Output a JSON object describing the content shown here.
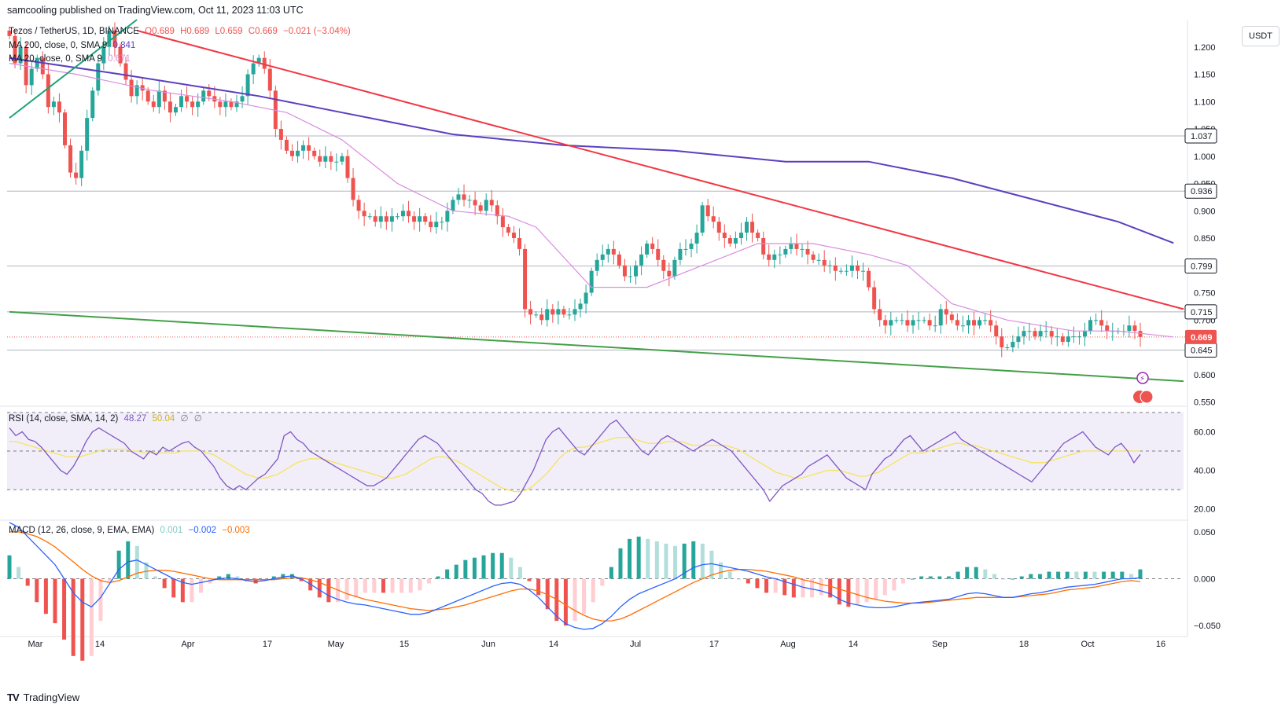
{
  "header": {
    "published": "samcooling published on TradingView.com, Oct 11, 2023 11:03 UTC"
  },
  "price_legend": {
    "symbol": "Tezos / TetherUS, 1D, BINANCE",
    "o": "O0.689",
    "h": "H0.689",
    "l": "L0.659",
    "c": "C0.669",
    "chg": "−0.021 (−3.04%)",
    "ma200": "MA 200, close, 0, SMA 9",
    "ma200_val": "0.841",
    "ma20": "MA 20, close, 0, SMA 9",
    "ma20_val": "0.671"
  },
  "rsi_legend": {
    "label": "RSI (14, close, SMA, 14, 2)",
    "v1": "48.27",
    "v2": "50.04",
    "v3": "∅",
    "v4": "∅"
  },
  "macd_legend": {
    "label": "MACD (12, 26, close, 9, EMA, EMA)",
    "v1": "0.001",
    "v2": "−0.002",
    "v3": "−0.003"
  },
  "currency_button": "USDT",
  "footer": {
    "logo": "TV",
    "brand": "TradingView"
  },
  "colors": {
    "up": "#26a69a",
    "down": "#ef5350",
    "ma200": "#5b3fbf",
    "ma20": "#d98ce0",
    "resistance": "#f23645",
    "support": "#43a047",
    "rsi": "#7e57c2",
    "rsi_sma": "#f7e35c",
    "macd": "#2962ff",
    "signal": "#ff6d00"
  },
  "chart_data": {
    "type": "candlestick",
    "price_axis": {
      "labels": [
        "1.200",
        "1.150",
        "1.100",
        "1.050",
        "1.000",
        "0.950",
        "0.900",
        "0.850",
        "0.750",
        "0.700",
        "0.600",
        "0.550"
      ],
      "min": 0.545,
      "max": 1.25
    },
    "x_axis_labels": [
      "Mar",
      "14",
      "Apr",
      "17",
      "May",
      "15",
      "Jun",
      "14",
      "Jul",
      "17",
      "Aug",
      "14",
      "Sep",
      "18",
      "Oct",
      "16"
    ],
    "level_labels": [
      "1.037",
      "0.936",
      "0.799",
      "0.715",
      "0.645"
    ],
    "levels": [
      1.037,
      0.936,
      0.799,
      0.715,
      0.645
    ],
    "last_price": {
      "label": "0.669",
      "value": 0.669
    },
    "closes": [
      1.22,
      1.17,
      1.2,
      1.13,
      1.16,
      1.18,
      1.15,
      1.09,
      1.1,
      1.08,
      1.02,
      0.97,
      0.96,
      1.01,
      1.07,
      1.12,
      1.17,
      1.2,
      1.23,
      1.2,
      1.17,
      1.14,
      1.11,
      1.13,
      1.12,
      1.1,
      1.09,
      1.12,
      1.1,
      1.08,
      1.09,
      1.11,
      1.1,
      1.09,
      1.1,
      1.12,
      1.11,
      1.1,
      1.09,
      1.1,
      1.09,
      1.1,
      1.11,
      1.15,
      1.17,
      1.18,
      1.16,
      1.12,
      1.05,
      1.03,
      1.01,
      1.0,
      1.01,
      1.02,
      1.01,
      1.0,
      0.99,
      1.0,
      0.99,
      0.99,
      1.0,
      0.96,
      0.92,
      0.9,
      0.89,
      0.89,
      0.88,
      0.89,
      0.88,
      0.89,
      0.89,
      0.9,
      0.89,
      0.88,
      0.89,
      0.88,
      0.87,
      0.88,
      0.88,
      0.9,
      0.92,
      0.93,
      0.92,
      0.92,
      0.91,
      0.9,
      0.92,
      0.91,
      0.89,
      0.87,
      0.86,
      0.85,
      0.83,
      0.72,
      0.71,
      0.71,
      0.7,
      0.72,
      0.71,
      0.72,
      0.71,
      0.71,
      0.72,
      0.73,
      0.75,
      0.79,
      0.81,
      0.82,
      0.83,
      0.82,
      0.8,
      0.78,
      0.78,
      0.8,
      0.82,
      0.84,
      0.83,
      0.81,
      0.79,
      0.78,
      0.81,
      0.83,
      0.83,
      0.84,
      0.86,
      0.91,
      0.89,
      0.88,
      0.86,
      0.85,
      0.84,
      0.85,
      0.86,
      0.88,
      0.86,
      0.85,
      0.82,
      0.81,
      0.82,
      0.82,
      0.83,
      0.84,
      0.83,
      0.83,
      0.82,
      0.81,
      0.81,
      0.8,
      0.8,
      0.79,
      0.79,
      0.79,
      0.8,
      0.79,
      0.79,
      0.76,
      0.72,
      0.7,
      0.69,
      0.7,
      0.7,
      0.7,
      0.69,
      0.7,
      0.7,
      0.7,
      0.69,
      0.69,
      0.72,
      0.71,
      0.7,
      0.69,
      0.69,
      0.7,
      0.69,
      0.7,
      0.7,
      0.69,
      0.67,
      0.65,
      0.65,
      0.66,
      0.67,
      0.68,
      0.68,
      0.67,
      0.68,
      0.68,
      0.67,
      0.67,
      0.66,
      0.67,
      0.67,
      0.67,
      0.68,
      0.7,
      0.7,
      0.69,
      0.68,
      0.68,
      0.68,
      0.68,
      0.69,
      0.68,
      0.669
    ],
    "ma20_points": [
      [
        0,
        1.17
      ],
      [
        12,
        1.15
      ],
      [
        26,
        1.12
      ],
      [
        40,
        1.1
      ],
      [
        50,
        1.08
      ],
      [
        60,
        1.03
      ],
      [
        70,
        0.95
      ],
      [
        80,
        0.9
      ],
      [
        90,
        0.89
      ],
      [
        95,
        0.87
      ],
      [
        105,
        0.76
      ],
      [
        115,
        0.76
      ],
      [
        125,
        0.8
      ],
      [
        135,
        0.84
      ],
      [
        145,
        0.84
      ],
      [
        155,
        0.82
      ],
      [
        162,
        0.8
      ],
      [
        170,
        0.73
      ],
      [
        180,
        0.7
      ],
      [
        192,
        0.68
      ],
      [
        200,
        0.68
      ],
      [
        210,
        0.669
      ]
    ],
    "ma200_points": [
      [
        0,
        1.18
      ],
      [
        20,
        1.15
      ],
      [
        45,
        1.11
      ],
      [
        60,
        1.08
      ],
      [
        80,
        1.04
      ],
      [
        100,
        1.02
      ],
      [
        120,
        1.01
      ],
      [
        140,
        0.99
      ],
      [
        155,
        0.99
      ],
      [
        170,
        0.96
      ],
      [
        185,
        0.92
      ],
      [
        200,
        0.88
      ],
      [
        210,
        0.841
      ]
    ],
    "trendlines": [
      {
        "name": "resistance",
        "from": [
          23,
          1.23
        ],
        "to": [
          216,
          0.72
        ]
      },
      {
        "name": "support",
        "from": [
          0,
          0.715
        ],
        "to": [
          216,
          0.588
        ]
      },
      {
        "name": "early-uptrend",
        "from": [
          0,
          1.07
        ],
        "to": [
          23,
          1.25
        ]
      }
    ],
    "rsi_axis": {
      "labels": [
        "60.00",
        "40.00",
        "20.00"
      ],
      "min": 15,
      "max": 72,
      "upper": 70,
      "lower": 30
    },
    "rsi_series": [
      62,
      58,
      60,
      56,
      55,
      52,
      48,
      44,
      40,
      38,
      42,
      48,
      55,
      60,
      62,
      60,
      58,
      56,
      54,
      50,
      48,
      46,
      50,
      48,
      52,
      50,
      52,
      54,
      55,
      52,
      50,
      46,
      42,
      36,
      32,
      30,
      32,
      30,
      33,
      36,
      38,
      42,
      46,
      58,
      60,
      56,
      54,
      50,
      48,
      46,
      44,
      42,
      40,
      38,
      36,
      34,
      32,
      32,
      34,
      36,
      40,
      44,
      48,
      52,
      56,
      58,
      56,
      54,
      50,
      46,
      42,
      38,
      34,
      30,
      28,
      24,
      22,
      22,
      23,
      24,
      28,
      34,
      40,
      48,
      56,
      60,
      62,
      58,
      54,
      50,
      48,
      52,
      56,
      60,
      64,
      66,
      62,
      58,
      54,
      50,
      48,
      52,
      56,
      58,
      56,
      54,
      52,
      50,
      52,
      54,
      56,
      54,
      52,
      50,
      46,
      42,
      38,
      34,
      30,
      24,
      28,
      32,
      34,
      36,
      38,
      42,
      44,
      46,
      48,
      44,
      40,
      36,
      34,
      32,
      30,
      38,
      42,
      46,
      48,
      52,
      56,
      58,
      54,
      50,
      52,
      54,
      56,
      58,
      60,
      56,
      54,
      52,
      50,
      48,
      46,
      44,
      42,
      40,
      38,
      36,
      34,
      38,
      42,
      46,
      50,
      54,
      56,
      58,
      60,
      56,
      52,
      50,
      48,
      52,
      54,
      50,
      44,
      48.27
    ],
    "rsi_sma_series": [
      55,
      55,
      54,
      53,
      52,
      51,
      50,
      49,
      48,
      47,
      47,
      47,
      48,
      49,
      50,
      51,
      51,
      51,
      51,
      50,
      50,
      49,
      49,
      49,
      49,
      49,
      49,
      50,
      50,
      50,
      50,
      49,
      48,
      46,
      44,
      42,
      40,
      38,
      37,
      36,
      36,
      37,
      38,
      40,
      42,
      44,
      45,
      46,
      46,
      46,
      45,
      44,
      43,
      42,
      41,
      40,
      39,
      38,
      37,
      36,
      36,
      37,
      38,
      40,
      42,
      44,
      46,
      47,
      47,
      46,
      45,
      43,
      41,
      39,
      37,
      35,
      33,
      31,
      30,
      29,
      29,
      30,
      32,
      35,
      38,
      42,
      46,
      49,
      51,
      52,
      52,
      53,
      54,
      55,
      56,
      57,
      57,
      57,
      56,
      55,
      54,
      54,
      54,
      55,
      55,
      55,
      54,
      53,
      53,
      53,
      53,
      53,
      53,
      52,
      51,
      49,
      47,
      45,
      43,
      41,
      39,
      38,
      37,
      36,
      36,
      37,
      38,
      39,
      40,
      40,
      40,
      39,
      38,
      37,
      37,
      38,
      39,
      41,
      43,
      45,
      47,
      49,
      49,
      49,
      50,
      51,
      52,
      53,
      54,
      54,
      53,
      53,
      52,
      51,
      50,
      49,
      48,
      47,
      46,
      45,
      44,
      44,
      44,
      45,
      46,
      47,
      48,
      49,
      50,
      50,
      50,
      50,
      50,
      50,
      50,
      50,
      50,
      50.04
    ],
    "macd_axis": {
      "labels": [
        "0.050",
        "0.000",
        "−0.050"
      ],
      "min": -0.06,
      "max": 0.06
    },
    "macd_series": [
      0.06,
      0.055,
      0.045,
      0.035,
      0.025,
      0.015,
      0.0,
      -0.015,
      -0.025,
      -0.03,
      -0.02,
      -0.005,
      0.01,
      0.018,
      0.02,
      0.015,
      0.01,
      0.005,
      0.0,
      -0.004,
      -0.006,
      -0.004,
      -0.002,
      0.0,
      0.001,
      0.0,
      -0.002,
      -0.003,
      -0.002,
      0.0,
      0.002,
      0.003,
      0.0,
      -0.006,
      -0.012,
      -0.018,
      -0.022,
      -0.025,
      -0.027,
      -0.028,
      -0.03,
      -0.032,
      -0.034,
      -0.036,
      -0.038,
      -0.038,
      -0.036,
      -0.032,
      -0.028,
      -0.024,
      -0.02,
      -0.016,
      -0.012,
      -0.008,
      -0.005,
      -0.004,
      -0.006,
      -0.012,
      -0.02,
      -0.03,
      -0.04,
      -0.048,
      -0.052,
      -0.054,
      -0.053,
      -0.048,
      -0.04,
      -0.03,
      -0.022,
      -0.016,
      -0.012,
      -0.008,
      -0.004,
      0.0,
      0.006,
      0.012,
      0.015,
      0.016,
      0.014,
      0.012,
      0.01,
      0.008,
      0.005,
      0.002,
      0.0,
      -0.003,
      -0.006,
      -0.009,
      -0.011,
      -0.013,
      -0.016,
      -0.022,
      -0.026,
      -0.028,
      -0.03,
      -0.031,
      -0.031,
      -0.03,
      -0.028,
      -0.026,
      -0.025,
      -0.024,
      -0.023,
      -0.022,
      -0.019,
      -0.016,
      -0.015,
      -0.016,
      -0.018,
      -0.02,
      -0.02,
      -0.018,
      -0.016,
      -0.015,
      -0.013,
      -0.011,
      -0.009,
      -0.008,
      -0.007,
      -0.006,
      -0.004,
      -0.002,
      0.0,
      0.0,
      0.001
    ],
    "signal_series": [
      0.05,
      0.05,
      0.048,
      0.045,
      0.04,
      0.034,
      0.026,
      0.018,
      0.01,
      0.003,
      -0.002,
      -0.004,
      -0.002,
      0.002,
      0.006,
      0.008,
      0.009,
      0.009,
      0.008,
      0.006,
      0.004,
      0.002,
      0.0,
      -0.001,
      -0.001,
      -0.001,
      -0.001,
      -0.001,
      -0.001,
      -0.001,
      0.0,
      0.001,
      0.001,
      -0.001,
      -0.004,
      -0.008,
      -0.012,
      -0.016,
      -0.019,
      -0.022,
      -0.024,
      -0.026,
      -0.028,
      -0.03,
      -0.032,
      -0.033,
      -0.034,
      -0.033,
      -0.032,
      -0.03,
      -0.028,
      -0.025,
      -0.022,
      -0.019,
      -0.016,
      -0.013,
      -0.011,
      -0.011,
      -0.013,
      -0.017,
      -0.022,
      -0.028,
      -0.034,
      -0.039,
      -0.043,
      -0.045,
      -0.045,
      -0.043,
      -0.039,
      -0.034,
      -0.029,
      -0.024,
      -0.019,
      -0.014,
      -0.009,
      -0.004,
      0.0,
      0.004,
      0.007,
      0.009,
      0.01,
      0.01,
      0.009,
      0.008,
      0.006,
      0.004,
      0.002,
      -0.001,
      -0.003,
      -0.006,
      -0.008,
      -0.011,
      -0.014,
      -0.017,
      -0.02,
      -0.022,
      -0.024,
      -0.025,
      -0.026,
      -0.026,
      -0.026,
      -0.025,
      -0.024,
      -0.023,
      -0.022,
      -0.021,
      -0.02,
      -0.02,
      -0.02,
      -0.02,
      -0.02,
      -0.019,
      -0.018,
      -0.017,
      -0.016,
      -0.014,
      -0.012,
      -0.011,
      -0.01,
      -0.009,
      -0.007,
      -0.005,
      -0.003,
      -0.002,
      -0.003
    ]
  }
}
